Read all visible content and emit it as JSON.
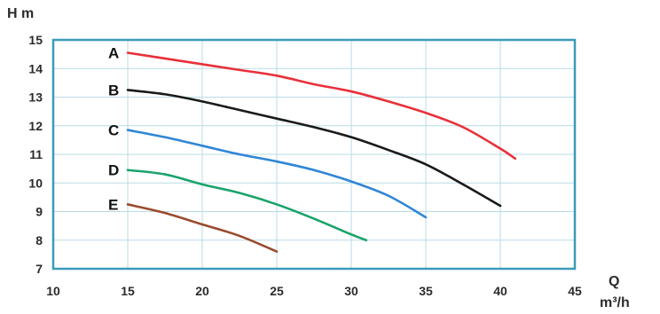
{
  "chart_data": {
    "type": "line",
    "title": "",
    "ylabel": "H m",
    "xlabel_line1": "Q",
    "xlabel_line2": "m³/h",
    "xlim": [
      10,
      45
    ],
    "ylim": [
      7,
      15
    ],
    "xticks": [
      10,
      15,
      20,
      25,
      30,
      35,
      40,
      45
    ],
    "yticks": [
      7,
      8,
      9,
      10,
      11,
      12,
      13,
      14,
      15
    ],
    "grid": true,
    "frame_color": "#3a9bb8",
    "grid_color": "#b9dbe6",
    "series": [
      {
        "name": "A",
        "color": "#e8303a",
        "x": [
          15,
          17.5,
          20,
          22.5,
          25,
          27.5,
          30,
          32.5,
          35,
          37.5,
          40,
          41
        ],
        "y": [
          14.55,
          14.35,
          14.15,
          13.95,
          13.75,
          13.45,
          13.2,
          12.85,
          12.45,
          11.95,
          11.2,
          10.85
        ]
      },
      {
        "name": "B",
        "color": "#1a1a1a",
        "x": [
          15,
          17.5,
          20,
          22.5,
          25,
          27.5,
          30,
          32.5,
          35,
          37.5,
          40
        ],
        "y": [
          13.25,
          13.1,
          12.85,
          12.55,
          12.25,
          11.95,
          11.6,
          11.15,
          10.65,
          9.95,
          9.2
        ]
      },
      {
        "name": "C",
        "color": "#2f86d6",
        "x": [
          15,
          17.5,
          20,
          22.5,
          25,
          27.5,
          30,
          32.5,
          35
        ],
        "y": [
          11.85,
          11.6,
          11.3,
          11.0,
          10.75,
          10.45,
          10.05,
          9.55,
          8.8
        ]
      },
      {
        "name": "D",
        "color": "#19a36a",
        "x": [
          15,
          17.5,
          20,
          22.5,
          25,
          27.5,
          30,
          31
        ],
        "y": [
          10.45,
          10.3,
          9.95,
          9.65,
          9.25,
          8.75,
          8.2,
          8.0
        ]
      },
      {
        "name": "E",
        "color": "#9a4a2e",
        "x": [
          15,
          17.5,
          20,
          22.5,
          25
        ],
        "y": [
          9.25,
          8.95,
          8.55,
          8.15,
          7.6
        ]
      }
    ]
  }
}
